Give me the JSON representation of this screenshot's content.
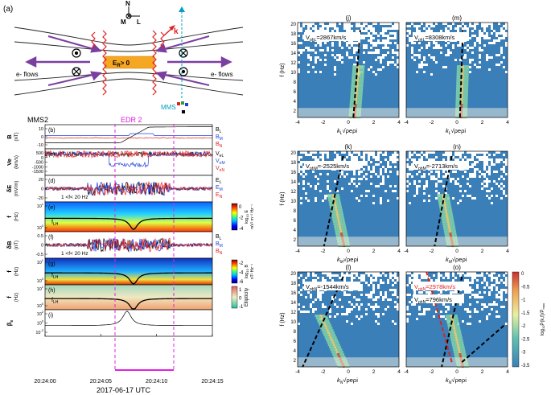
{
  "schematic": {
    "panel_label": "(a)",
    "axis_n": "N",
    "axis_m": "M",
    "axis_l": "L",
    "k_label": "k",
    "flow_left": "e- flows",
    "flow_right": "e- flows",
    "er_label": "E",
    "er_sub": "R",
    "er_rest": "> 0",
    "spacecraft": "MMS",
    "colors": {
      "flow": "#7b3fa0",
      "er_box": "#f5a623",
      "wave": "#e02020",
      "mms": "#00a0c0"
    }
  },
  "timeseries": {
    "title": "MMS2",
    "edr_label": "EDR 2",
    "xlabel": "2017-06-17 UTC",
    "xticks": [
      "20:24:00",
      "20:24:05",
      "20:24:10",
      "20:24:15"
    ],
    "panels": [
      {
        "id": "b",
        "label": "(b)",
        "ylabel": "B",
        "yunit": "(nT)",
        "yticks": [
          "10",
          "0",
          "-10"
        ],
        "legend": [
          "B",
          "B",
          "B"
        ],
        "legend_sub": [
          "L",
          "M",
          "N"
        ]
      },
      {
        "id": "c",
        "label": "(c)",
        "ylabel": "Ve",
        "yunit": "(km/s)",
        "yticks": [
          "500",
          "0",
          "-500",
          "-1000",
          "-1500"
        ],
        "legend": [
          "V",
          "V",
          "V"
        ],
        "legend_sub": [
          "eL",
          "eM",
          "eN"
        ]
      },
      {
        "id": "d",
        "label": "(d)",
        "ylabel": "δE",
        "yunit": "(mV/m)",
        "yticks": [
          "20",
          "0",
          "-20"
        ],
        "legend": [
          "E",
          "E",
          "E"
        ],
        "legend_sub": [
          "L",
          "M",
          "N"
        ],
        "note": "1 <f< 20 Hz"
      },
      {
        "id": "e",
        "label": "(e)",
        "ylabel": "f",
        "yunit": "(Hz)",
        "yticks": [
          "10",
          "10"
        ],
        "ytick_sup": [
          "1",
          "0"
        ],
        "lh": "f",
        "lh_sub": "LH",
        "cbar_label": "log",
        "cbar_sub": "10",
        "cbar_rest": " E",
        "cbar_unit": "mV² m⁻² Hz⁻¹",
        "cbar_ticks": [
          "0",
          "-2",
          "-4"
        ]
      },
      {
        "id": "f",
        "label": "(f)",
        "ylabel": "δB",
        "yunit": "(nT)",
        "yticks": [
          "0.5",
          "0",
          "-0.5"
        ],
        "legend": [
          "B",
          "B",
          "B"
        ],
        "legend_sub": [
          "L",
          "M",
          "N"
        ],
        "note": "1 <f< 20 Hz"
      },
      {
        "id": "g",
        "label": "(g)",
        "ylabel": "f",
        "yunit": "(Hz)",
        "yticks": [
          "10",
          "10"
        ],
        "ytick_sup": [
          "1",
          "0"
        ],
        "lh": "f",
        "lh_sub": "LH",
        "cbar_label": "log",
        "cbar_sub": "10",
        "cbar_rest": " B",
        "cbar_unit": "nT² Hz⁻¹",
        "cbar_ticks": [
          "-2",
          "-4",
          "-6"
        ]
      },
      {
        "id": "h",
        "label": "(h)",
        "ylabel": "f",
        "yunit": "(Hz)",
        "yticks": [
          "10",
          "10"
        ],
        "ytick_sup": [
          "1",
          "0"
        ],
        "lh": "f",
        "lh_sub": "LH",
        "cbar_label": "Ellipticity",
        "cbar_ticks": [
          "1",
          "0",
          "-1"
        ]
      },
      {
        "id": "i",
        "label": "(i)",
        "ylabel": "β",
        "ylabel_sub": "e",
        "yticks": [
          "10",
          "10",
          "10"
        ],
        "ytick_sup": [
          "2",
          "0",
          "-2"
        ]
      }
    ],
    "colors": {
      "L": "#000000",
      "M": "#2040e0",
      "N": "#e02020",
      "edr": "#e020e0"
    }
  },
  "spectra": {
    "panels": [
      {
        "id": "j",
        "label": "(j)",
        "vph": "V",
        "vph_sub": "phL",
        "vph_rest": "=2867km/s",
        "xlabel": "k",
        "xsub": "L"
      },
      {
        "id": "m",
        "label": "(m)",
        "vph": "V",
        "vph_sub": "phL",
        "vph_rest": "=8308km/s",
        "xlabel": "k",
        "xsub": "L"
      },
      {
        "id": "k",
        "label": "(k)",
        "vph": "V",
        "vph_sub": "phM",
        "vph_rest": "=-2525km/s",
        "xlabel": "k",
        "xsub": "M"
      },
      {
        "id": "n",
        "label": "(n)",
        "vph": "V",
        "vph_sub": "phM",
        "vph_rest": "=-2713km/s",
        "xlabel": "k",
        "xsub": "M"
      },
      {
        "id": "l",
        "label": "(l)",
        "vph": "V",
        "vph_sub": "phN",
        "vph_rest": "=-1544km/s",
        "xlabel": "k",
        "xsub": "N"
      },
      {
        "id": "o",
        "label": "(o)",
        "vph": "V",
        "vph_sub": "phN",
        "vph_rest": "=2978km/s",
        "vph2": "V",
        "vph2_sub": "phN",
        "vph2_rest": "=796km/s",
        "xlabel": "k",
        "xsub": "N"
      }
    ],
    "ylabel": "f (Hz)",
    "yticks": [
      "20",
      "18",
      "16",
      "14",
      "12",
      "10",
      "8",
      "6",
      "4",
      "2"
    ],
    "xticks": [
      "-4",
      "-2",
      "0",
      "2",
      "4"
    ],
    "xlabel_rest": "√ρeρi",
    "cbar_label": "log",
    "cbar_sub": "10",
    "cbar_rest": "P(k,f)/P",
    "cbar_rest_sub": "max",
    "cbar_ticks": [
      "0",
      "-0.5",
      "-1",
      "-1.5",
      "-2",
      "-2.5",
      "-3",
      "-3.5"
    ]
  }
}
